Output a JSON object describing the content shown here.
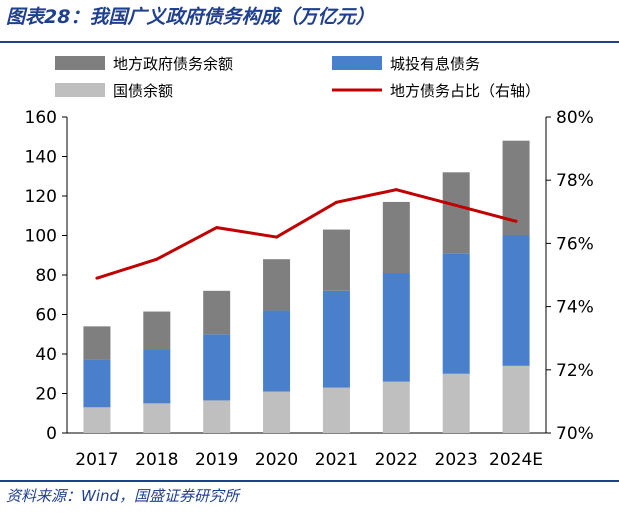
{
  "title": "图表28：我国广义政府债务构成（万亿元）",
  "source": "资料来源：Wind，国盛证券研究所",
  "colors": {
    "title": "#1f3f8f",
    "local_gov_debt": "#7f7f7f",
    "lgfv_debt": "#4a7fcb",
    "treasury_debt": "#bfbfbf",
    "share_line": "#c00000"
  },
  "chart_data": {
    "type": "bar",
    "stacked": true,
    "title": "我国广义政府债务构成（万亿元）",
    "categories": [
      "2017",
      "2018",
      "2019",
      "2020",
      "2021",
      "2022",
      "2023",
      "2024E"
    ],
    "series": [
      {
        "name": "国债余额",
        "type": "bar",
        "axis": "left",
        "values": [
          13,
          15,
          16.5,
          21,
          23,
          26,
          30,
          34
        ]
      },
      {
        "name": "城投有息债务",
        "type": "bar",
        "axis": "left",
        "values": [
          24,
          27.5,
          33.5,
          41,
          49,
          55,
          61,
          66
        ]
      },
      {
        "name": "地方政府债务余额",
        "type": "bar",
        "axis": "left",
        "values": [
          17,
          19,
          22,
          26,
          31,
          36,
          41,
          48
        ]
      },
      {
        "name": "地方债务占比（右轴）",
        "type": "line",
        "axis": "right",
        "values": [
          74.9,
          75.5,
          76.5,
          76.2,
          77.3,
          77.7,
          77.2,
          76.7
        ]
      }
    ],
    "legend": [
      {
        "label": "地方政府债务余额",
        "kind": "box",
        "color": "#7f7f7f"
      },
      {
        "label": "城投有息债务",
        "kind": "box",
        "color": "#4a7fcb"
      },
      {
        "label": "国债余额",
        "kind": "box",
        "color": "#bfbfbf"
      },
      {
        "label": "地方债务占比（右轴）",
        "kind": "line",
        "color": "#c00000"
      }
    ],
    "left_axis": {
      "min": 0,
      "max": 160,
      "step": 20,
      "ticks": [
        "0",
        "20",
        "40",
        "60",
        "80",
        "100",
        "120",
        "140",
        "160"
      ]
    },
    "right_axis": {
      "min": 70,
      "max": 80,
      "step": 2,
      "ticks": [
        "70%",
        "72%",
        "74%",
        "76%",
        "78%",
        "80%"
      ]
    },
    "grid": false,
    "legend_position": "top"
  }
}
